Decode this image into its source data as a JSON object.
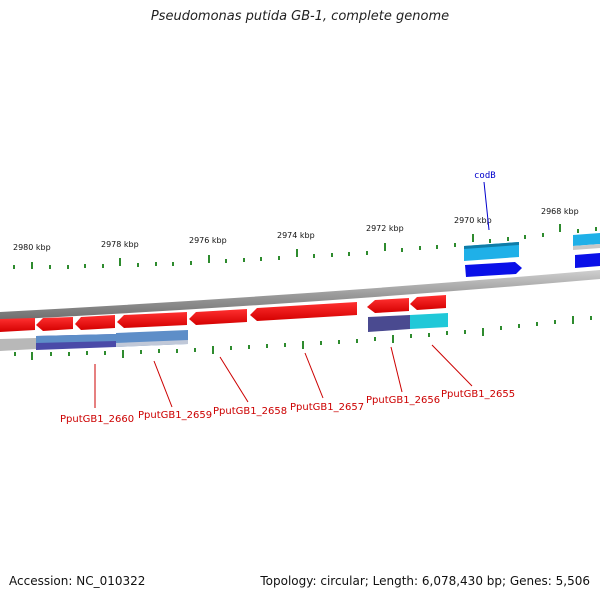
{
  "title": "Pseudomonas putida GB-1, complete genome",
  "footer": {
    "accession": "Accession: NC_010322",
    "summary": "Topology: circular; Length: 6,078,430 bp; Genes: 5,506"
  },
  "colors": {
    "backbone": "#888888",
    "ticks": "#2e8b2e",
    "red_gene": "#ee1111",
    "blue_gene": "#0a10e8",
    "light_blue_gene": "#1fb0e8",
    "gene_label": "#cc0000",
    "highlight_label": "#0000cc"
  },
  "axis": {
    "ticks": [
      "2980 kbp",
      "2978 kbp",
      "2976 kbp",
      "2974 kbp",
      "2972 kbp",
      "2970 kbp",
      "2968 kbp"
    ]
  },
  "highlight_gene": "codB",
  "gene_labels": [
    "PputGB1_2660",
    "PputGB1_2659",
    "PputGB1_2658",
    "PputGB1_2657",
    "PputGB1_2656",
    "PputGB1_2655"
  ]
}
